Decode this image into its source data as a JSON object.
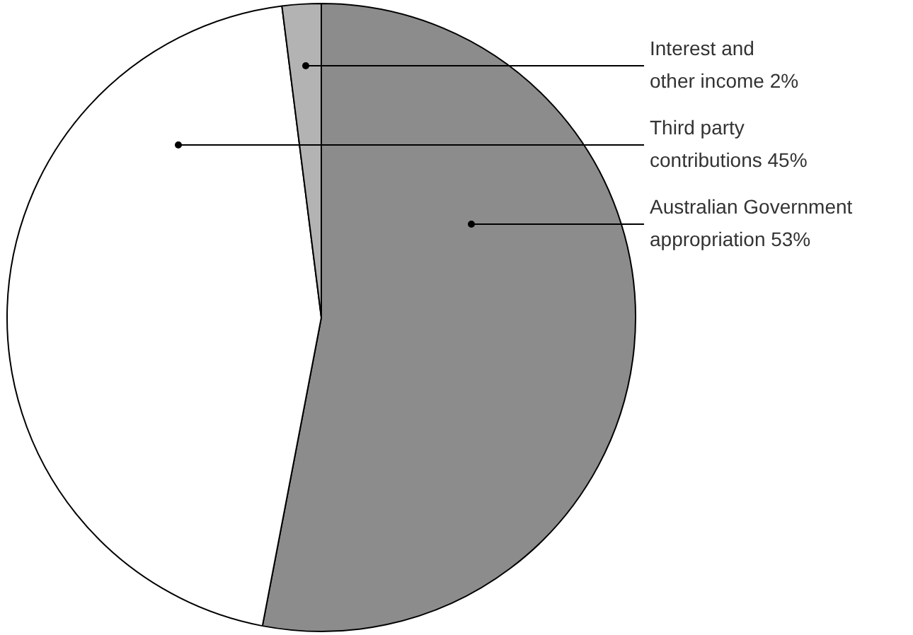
{
  "chart_data": {
    "type": "pie",
    "categories": [
      "Australian Government\nappropriation 53%",
      "Third party\ncontributions 45%",
      "Interest and\nother income 2%"
    ],
    "values": [
      53,
      45,
      2
    ],
    "colors": [
      "#8c8c8c",
      "#ffffff",
      "#b3b3b3"
    ],
    "legend": false
  }
}
